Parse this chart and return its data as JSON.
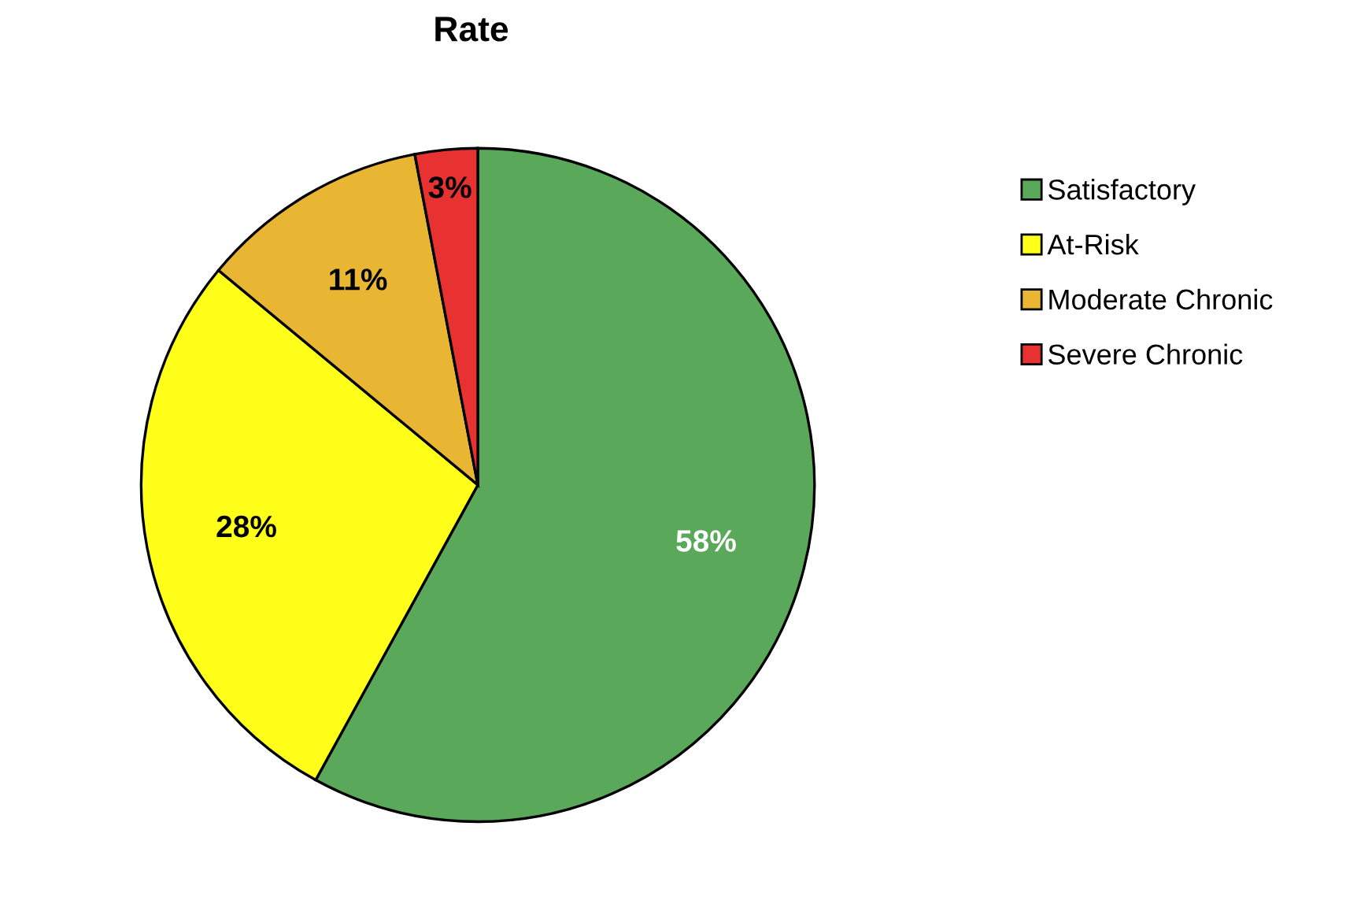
{
  "chart_data": {
    "type": "pie",
    "title": "Rate",
    "categories": [
      "Satisfactory",
      "At-Risk",
      "Moderate Chronic",
      "Severe Chronic"
    ],
    "values": [
      58,
      28,
      11,
      3
    ],
    "colors": [
      "#5aa95a",
      "#ffff1a",
      "#e8b632",
      "#e83232"
    ],
    "value_labels": [
      "58%",
      "28%",
      "11%",
      "3%"
    ],
    "legend": "right"
  }
}
